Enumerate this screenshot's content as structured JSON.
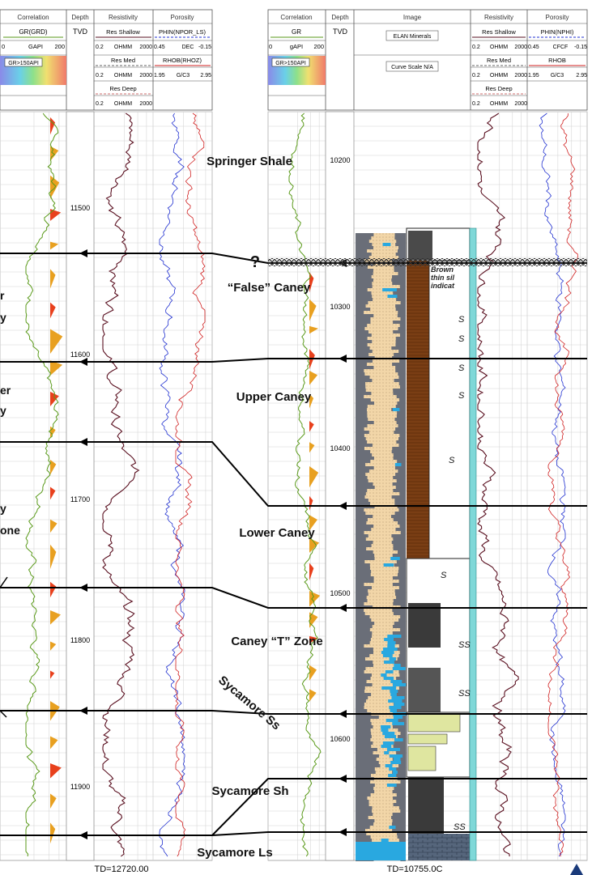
{
  "left_log": {
    "header": {
      "track_titles": [
        "Correlation",
        "Depth",
        "Resistivity",
        "Porosity"
      ],
      "gr_curve": "GR(GRD)",
      "gr_scale_left": "0",
      "gr_units": "GAPI",
      "gr_scale_right": "200",
      "gr_cutoff": "GR>150API",
      "depth_units": "TVD",
      "res_shallow": "Res Shallow",
      "res_shallow_scale": [
        "0.2",
        "OHMM",
        "2000"
      ],
      "res_med": "Res Med",
      "res_med_scale": [
        "0.2",
        "OHMM",
        "2000"
      ],
      "res_deep": "Res Deep",
      "res_deep_scale": [
        "0.2",
        "OHMM",
        "2000"
      ],
      "nphi": "PHIN(NPOR_LS)",
      "nphi_scale": [
        "0.45",
        "DEC",
        "-0.15"
      ],
      "rhob": "RHOB(RHOZ)",
      "rhob_scale": [
        "1.95",
        "G/C3",
        "2.95"
      ]
    },
    "depths": [
      "11500",
      "11600",
      "11700",
      "11800",
      "11900"
    ],
    "td": "TD=12720.00",
    "partial_labels": [
      "r",
      "y",
      "er",
      "y",
      "y",
      "one"
    ]
  },
  "right_log": {
    "header": {
      "track_titles": [
        "Correlation",
        "Depth",
        "Image",
        "Resistivity",
        "Porosity"
      ],
      "gr_curve": "GR",
      "gr_scale_left": "0",
      "gr_units": "gAPI",
      "gr_scale_right": "200",
      "gr_cutoff": "GR>150API",
      "depth_units": "TVD",
      "image_line1": "ELAN Minerals",
      "image_line2": "Curve Scale N/A",
      "res_shallow": "Res Shallow",
      "res_shallow_scale": [
        "0.2",
        "OHMM",
        "2000"
      ],
      "res_med": "Res Med",
      "res_med_scale": [
        "0.2",
        "OHMM",
        "2000"
      ],
      "res_deep": "Res Deep",
      "res_deep_scale": [
        "0.2",
        "OHMM",
        "2000"
      ],
      "nphi": "PHIN(NPHI)",
      "nphi_scale": [
        "0.45",
        "CFCF",
        "-0.15"
      ],
      "rhob": "RHOB",
      "rhob_scale": [
        "1.95",
        "G/C3",
        "2.95"
      ]
    },
    "depths": [
      "10200",
      "10300",
      "10400",
      "10500",
      "10600"
    ],
    "td": "TD=10755.0C"
  },
  "formations": [
    "Springer Shale",
    "“False” Caney",
    "Upper Caney",
    "Lower Caney",
    "Caney “T” Zone",
    "Sycamore Ss",
    "Sycamore Sh",
    "Sycamore Ls"
  ],
  "question_mark": "?",
  "core_annotation": [
    "Brown",
    "thin sil",
    "indicat"
  ],
  "core_symbols": [
    "S",
    "S",
    "S",
    "S",
    "S",
    "S",
    "SS",
    "SS",
    "SS"
  ],
  "colors": {
    "gr_curve": "#5a9a1a",
    "gr_fill_hot": "#e8401c",
    "gr_fill_mid": "#e8a020",
    "res_curve": "#5a1020",
    "nphi_curve": "#2030d0",
    "rhob_curve": "#d02020",
    "elan_sand": "#f2d6a8",
    "elan_calcite": "#29a8e0",
    "elan_shale": "#6a6e78",
    "core_shale": "#7a3e14",
    "core_sand": "#dfe6a0",
    "core_carbonate": "#4a5a70"
  }
}
